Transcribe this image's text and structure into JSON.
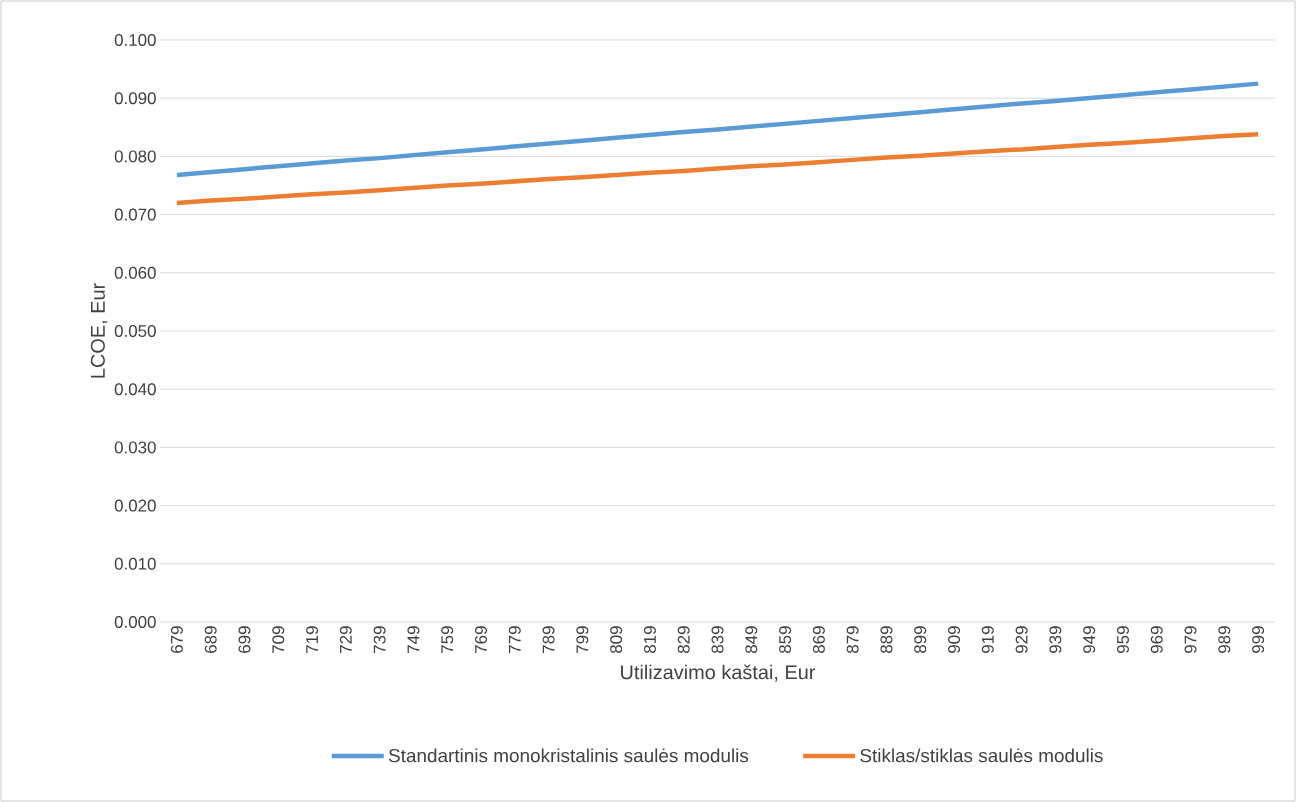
{
  "chart_data": {
    "type": "line",
    "xlabel": "Utilizavimo kaštai, Eur",
    "ylabel": "LCOE, Eur",
    "categories": [
      "679",
      "689",
      "699",
      "709",
      "719",
      "729",
      "739",
      "749",
      "759",
      "769",
      "779",
      "789",
      "799",
      "809",
      "819",
      "829",
      "839",
      "849",
      "859",
      "869",
      "879",
      "889",
      "899",
      "909",
      "919",
      "929",
      "939",
      "949",
      "959",
      "969",
      "979",
      "989",
      "999"
    ],
    "series": [
      {
        "name": "Standartinis monokristalinis saulės modulis",
        "color": "#5b9bd5",
        "values": [
          0.0768,
          0.0773,
          0.0778,
          0.0783,
          0.0788,
          0.0793,
          0.0797,
          0.0802,
          0.0807,
          0.0812,
          0.0817,
          0.0822,
          0.0827,
          0.0832,
          0.0837,
          0.0842,
          0.0846,
          0.0851,
          0.0856,
          0.0861,
          0.0866,
          0.0871,
          0.0876,
          0.0881,
          0.0886,
          0.0891,
          0.0895,
          0.09,
          0.0905,
          0.091,
          0.0915,
          0.092,
          0.0925
        ]
      },
      {
        "name": "Stiklas/stiklas saulės modulis",
        "color": "#ed7d31",
        "values": [
          0.072,
          0.0724,
          0.0727,
          0.0731,
          0.0735,
          0.0738,
          0.0742,
          0.0746,
          0.075,
          0.0753,
          0.0757,
          0.0761,
          0.0764,
          0.0768,
          0.0772,
          0.0775,
          0.0779,
          0.0783,
          0.0786,
          0.079,
          0.0794,
          0.0798,
          0.0801,
          0.0805,
          0.0809,
          0.0812,
          0.0816,
          0.082,
          0.0823,
          0.0827,
          0.0831,
          0.0835,
          0.0838
        ]
      }
    ],
    "ylim": [
      0,
      0.1
    ],
    "yticks": [
      {
        "value": 0,
        "label": "0.000"
      },
      {
        "value": 0.01,
        "label": "0.010"
      },
      {
        "value": 0.02,
        "label": "0.020"
      },
      {
        "value": 0.03,
        "label": "0.030"
      },
      {
        "value": 0.04,
        "label": "0.040"
      },
      {
        "value": 0.05,
        "label": "0.050"
      },
      {
        "value": 0.06,
        "label": "0.060"
      },
      {
        "value": 0.07,
        "label": "0.070"
      },
      {
        "value": 0.08,
        "label": "0.080"
      },
      {
        "value": 0.09,
        "label": "0.090"
      },
      {
        "value": 0.1,
        "label": "0.100"
      }
    ],
    "grid": "y",
    "legend": "bottom",
    "marker": "none",
    "line_style": "solid"
  }
}
